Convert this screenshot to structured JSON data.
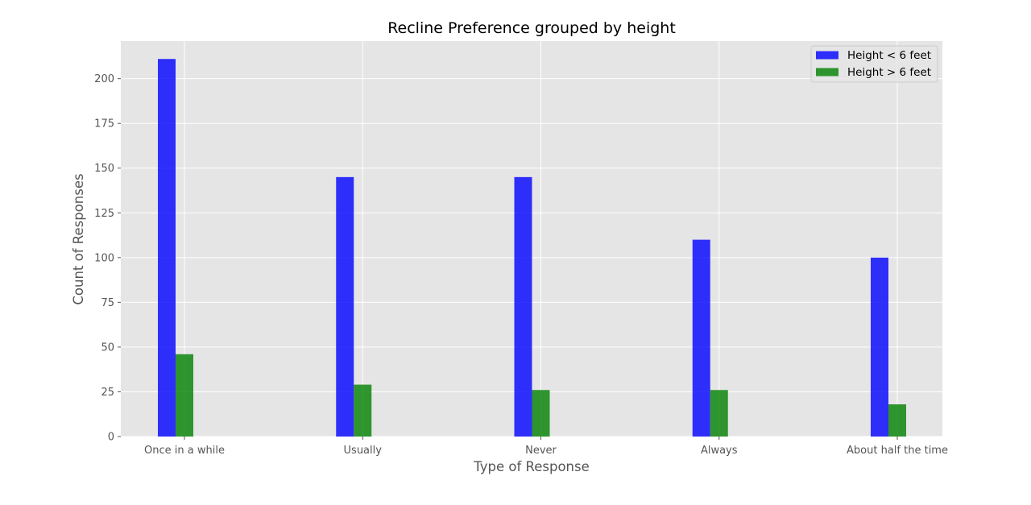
{
  "chart_data": {
    "type": "bar",
    "title": "Recline Preference grouped by height",
    "xlabel": "Type of Response",
    "ylabel": "Count of Responses",
    "categories": [
      "Once in a while",
      "Usually",
      "Never",
      "Always",
      "About half the time"
    ],
    "series": [
      {
        "name": "Height < 6 feet",
        "color": "#0000ff",
        "values": [
          211,
          145,
          145,
          110,
          100
        ]
      },
      {
        "name": "Height > 6 feet",
        "color": "#008000",
        "values": [
          46,
          29,
          26,
          26,
          18
        ]
      }
    ],
    "ylim": [
      0,
      221
    ],
    "yticks": [
      0,
      25,
      50,
      75,
      100,
      125,
      150,
      175,
      200
    ],
    "grid": true,
    "legend_position": "top-right",
    "style": "ggplot",
    "background_color": "#e5e5e5",
    "grid_color": "#ffffff"
  }
}
